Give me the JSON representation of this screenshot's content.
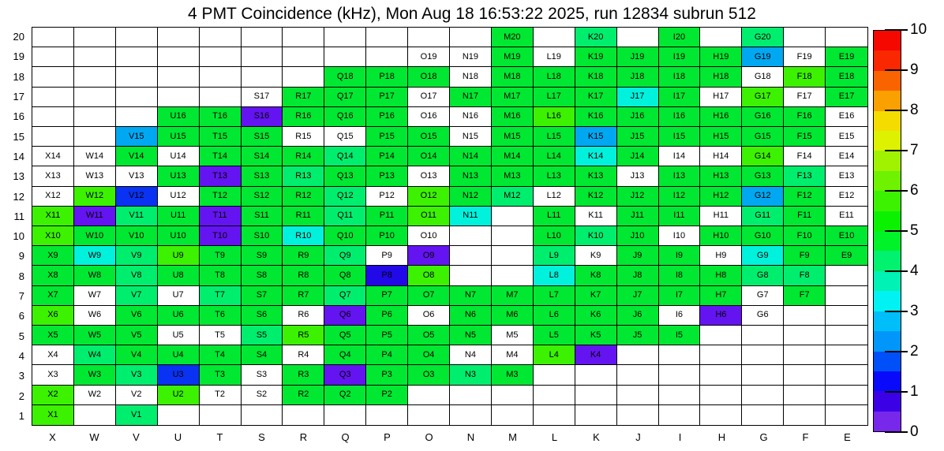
{
  "title": "4 PMT Coincidence (kHz), Mon Aug 18 16:53:22 2025, run 12834 subrun 512",
  "chart_data": {
    "type": "heatmap",
    "title": "4 PMT Coincidence (kHz), Mon Aug 18 16:53:22 2025, run 12834 subrun 512",
    "xlabel": "",
    "ylabel": "",
    "columns": [
      "X",
      "W",
      "V",
      "U",
      "T",
      "S",
      "R",
      "Q",
      "P",
      "O",
      "N",
      "M",
      "L",
      "K",
      "J",
      "I",
      "H",
      "G",
      "F",
      "E"
    ],
    "rows": [
      20,
      19,
      18,
      17,
      16,
      15,
      14,
      13,
      12,
      11,
      10,
      9,
      8,
      7,
      6,
      5,
      4,
      3,
      2,
      1
    ],
    "cell_label_rule": "column letter + row number; empty string means blank white cell",
    "palette": {
      "w": {
        "hex": "#ffffff",
        "approx_value": null,
        "meaning": "labeled cell, no rate color"
      },
      "yg": {
        "hex": "#3cf200",
        "approx_value": 6.2
      },
      "g": {
        "hex": "#00e831",
        "approx_value": 5.2
      },
      "sg": {
        "hex": "#00ee6e",
        "approx_value": 4.4
      },
      "cy": {
        "hex": "#00f2dc",
        "approx_value": 3.5
      },
      "lb": {
        "hex": "#00a8f2",
        "approx_value": 2.6
      },
      "b": {
        "hex": "#0a32f2",
        "approx_value": 1.8
      },
      "db": {
        "hex": "#2209e8",
        "approx_value": 1.2
      },
      "p": {
        "hex": "#6414f0",
        "approx_value": 0.6
      }
    },
    "cells": [
      [
        "",
        "",
        "",
        "",
        "",
        "",
        "",
        "",
        "",
        "",
        "",
        "g",
        "",
        "sg",
        "",
        "g",
        "",
        "sg",
        "",
        ""
      ],
      [
        "",
        "",
        "",
        "",
        "",
        "",
        "",
        "",
        "",
        "w",
        "w",
        "g",
        "w",
        "g",
        "g",
        "g",
        "g",
        "lb",
        "w",
        "g"
      ],
      [
        "",
        "",
        "",
        "",
        "",
        "",
        "",
        "g",
        "g",
        "g",
        "w",
        "g",
        "g",
        "g",
        "g",
        "g",
        "g",
        "w",
        "yg",
        "g"
      ],
      [
        "",
        "",
        "",
        "",
        "",
        "w",
        "g",
        "g",
        "g",
        "w",
        "g",
        "g",
        "g",
        "g",
        "cy",
        "g",
        "w",
        "yg",
        "w",
        "g"
      ],
      [
        "",
        "",
        "",
        "g",
        "g",
        "p",
        "g",
        "g",
        "g",
        "w",
        "w",
        "g",
        "yg",
        "g",
        "g",
        "g",
        "g",
        "g",
        "g",
        "w"
      ],
      [
        "",
        "",
        "lb",
        "g",
        "g",
        "g",
        "w",
        "w",
        "g",
        "g",
        "w",
        "g",
        "g",
        "lb",
        "g",
        "g",
        "g",
        "g",
        "g",
        "w"
      ],
      [
        "w",
        "w",
        "g",
        "w",
        "g",
        "g",
        "g",
        "sg",
        "g",
        "g",
        "g",
        "g",
        "g",
        "cy",
        "g",
        "w",
        "w",
        "yg",
        "w",
        "w"
      ],
      [
        "w",
        "w",
        "w",
        "g",
        "p",
        "g",
        "sg",
        "g",
        "g",
        "w",
        "g",
        "g",
        "g",
        "g",
        "w",
        "g",
        "g",
        "g",
        "sg",
        "w"
      ],
      [
        "w",
        "yg",
        "b",
        "w",
        "g",
        "g",
        "g",
        "sg",
        "w",
        "yg",
        "g",
        "sg",
        "w",
        "g",
        "g",
        "g",
        "g",
        "lb",
        "g",
        "w"
      ],
      [
        "yg",
        "p",
        "sg",
        "g",
        "p",
        "g",
        "g",
        "sg",
        "g",
        "yg",
        "cy",
        "",
        "g",
        "w",
        "g",
        "g",
        "w",
        "sg",
        "g",
        "w"
      ],
      [
        "yg",
        "g",
        "g",
        "g",
        "p",
        "g",
        "cy",
        "g",
        "g",
        "w",
        "",
        "",
        "g",
        "sg",
        "g",
        "w",
        "g",
        "g",
        "g",
        "g"
      ],
      [
        "g",
        "cy",
        "sg",
        "yg",
        "g",
        "g",
        "g",
        "sg",
        "w",
        "p",
        "",
        "",
        "sg",
        "w",
        "g",
        "g",
        "w",
        "cy",
        "g",
        "g"
      ],
      [
        "g",
        "g",
        "sg",
        "g",
        "g",
        "g",
        "g",
        "g",
        "db",
        "yg",
        "",
        "",
        "cy",
        "g",
        "g",
        "g",
        "g",
        "sg",
        "sg",
        ""
      ],
      [
        "g",
        "w",
        "sg",
        "w",
        "sg",
        "g",
        "g",
        "sg",
        "g",
        "g",
        "g",
        "g",
        "g",
        "g",
        "g",
        "g",
        "g",
        "w",
        "g",
        ""
      ],
      [
        "yg",
        "w",
        "g",
        "g",
        "g",
        "g",
        "w",
        "p",
        "g",
        "w",
        "g",
        "g",
        "g",
        "g",
        "g",
        "w",
        "p",
        "w",
        "",
        ""
      ],
      [
        "g",
        "g",
        "g",
        "w",
        "w",
        "sg",
        "yg",
        "g",
        "g",
        "g",
        "g",
        "w",
        "g",
        "g",
        "g",
        "g",
        "",
        "",
        "",
        ""
      ],
      [
        "w",
        "sg",
        "g",
        "g",
        "g",
        "g",
        "w",
        "g",
        "g",
        "g",
        "w",
        "w",
        "yg",
        "p",
        "",
        "",
        "",
        "",
        "",
        ""
      ],
      [
        "w",
        "g",
        "sg",
        "b",
        "g",
        "w",
        "g",
        "p",
        "g",
        "g",
        "sg",
        "g",
        "",
        "",
        "",
        "",
        "",
        "",
        "",
        ""
      ],
      [
        "yg",
        "w",
        "w",
        "yg",
        "w",
        "w",
        "g",
        "g",
        "g",
        "",
        "",
        "",
        "",
        "",
        "",
        "",
        "",
        "",
        "",
        ""
      ],
      [
        "yg",
        "",
        "sg",
        "",
        "",
        "",
        "",
        "",
        "",
        "",
        "",
        "",
        "",
        "",
        "",
        "",
        "",
        "",
        "",
        ""
      ]
    ],
    "colorbar": {
      "min": 0,
      "max": 10,
      "tick_values": [
        10,
        9,
        8,
        7,
        6,
        5,
        4,
        3,
        2,
        1,
        0
      ],
      "tick_labels": [
        "10",
        "9",
        "8",
        "7",
        "6",
        "5",
        "4",
        "3",
        "2",
        "1",
        "0"
      ],
      "band_colors_top_to_bottom": [
        "#f50800",
        "#fa2800",
        "#fa6400",
        "#faa000",
        "#f5dc00",
        "#dcf200",
        "#a0f200",
        "#6ef200",
        "#3cf200",
        "#0af200",
        "#00f228",
        "#00f26e",
        "#00f2b4",
        "#00f2f2",
        "#00befa",
        "#0096fa",
        "#0050fa",
        "#0a0afa",
        "#3c00e6",
        "#7828eb"
      ],
      "position": "right"
    },
    "grid_on": true,
    "legend_position": "none"
  }
}
